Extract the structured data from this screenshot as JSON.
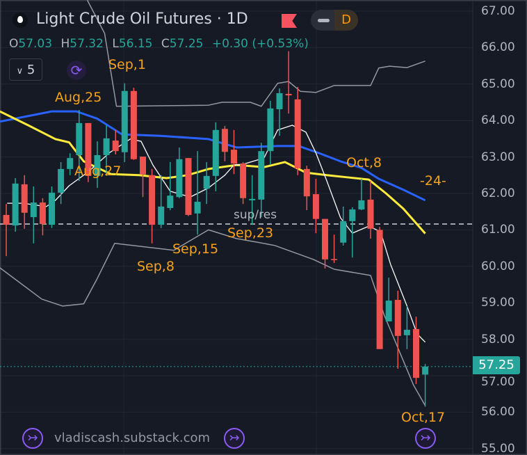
{
  "header": {
    "title": "Light Crude Oil Futures · 1D",
    "badge_letter": "D",
    "ohlc": {
      "o_label": "O",
      "o": "57.03",
      "h_label": "H",
      "h": "57.32",
      "l_label": "L",
      "l": "56.15",
      "c_label": "C",
      "c": "57.25",
      "change": "+0.30 (+0.53%)"
    },
    "level_button": "5",
    "icons": {
      "symbol": "drop-icon",
      "flag": "flag-icon",
      "sync": "sync-icon"
    }
  },
  "watermark": {
    "text": "vladiscash.substack.com",
    "icon": "substack-arrow-icon"
  },
  "annotations": {
    "sep1": "Sep,1",
    "aug25": "Aug,25",
    "aug27": "Aug,27",
    "sep8": "Sep,8",
    "sep15": "Sep,15",
    "sep23": "Sep,23",
    "supres": "sup/res",
    "oct8": "Oct,8",
    "count": "-24-",
    "oct17": "Oct,17"
  },
  "colors": {
    "up": "#26a69a",
    "down": "#ef5350",
    "ma_blue": "#2962ff",
    "ma_yellow": "#ffeb3b",
    "ma_white": "#ffffff",
    "bands": "#9598a1",
    "annotation": "#f7a21b",
    "background": "#161a25"
  },
  "chart_data": {
    "type": "candlestick",
    "timeframe": "1D",
    "ylim": [
      55,
      67
    ],
    "y_ticks": [
      "67.00",
      "66.00",
      "65.00",
      "64.00",
      "63.00",
      "62.00",
      "61.00",
      "60.00",
      "59.00",
      "58.00",
      "57.00",
      "56.00",
      "55.00"
    ],
    "last_price": "57.25",
    "support_resistance": 61.16,
    "candles": [
      [
        61.41,
        61.71,
        60.28,
        61.14
      ],
      [
        61.12,
        62.42,
        60.95,
        62.27
      ],
      [
        62.25,
        62.5,
        61.03,
        61.47
      ],
      [
        61.35,
        62.19,
        60.63,
        61.75
      ],
      [
        61.75,
        61.87,
        60.85,
        61.16
      ],
      [
        61.14,
        62.19,
        61.05,
        62.02
      ],
      [
        62.02,
        62.86,
        61.71,
        62.67
      ],
      [
        62.67,
        63.1,
        62.5,
        62.97
      ],
      [
        63.05,
        64.29,
        62.34,
        63.93
      ],
      [
        63.93,
        63.93,
        62.31,
        62.48
      ],
      [
        62.48,
        63.43,
        62.15,
        63.05
      ],
      [
        63.05,
        63.87,
        62.48,
        63.51
      ],
      [
        63.45,
        63.74,
        63.07,
        63.16
      ],
      [
        63.13,
        65.02,
        62.86,
        64.81
      ],
      [
        64.81,
        64.9,
        62.92,
        62.94
      ],
      [
        63.01,
        63.01,
        61.9,
        62.52
      ],
      [
        62.5,
        62.67,
        60.63,
        61.14
      ],
      [
        61.14,
        62.5,
        61.05,
        61.64
      ],
      [
        61.6,
        62.86,
        61.54,
        61.94
      ],
      [
        61.9,
        63.26,
        61.87,
        62.94
      ],
      [
        62.97,
        62.97,
        61.38,
        61.41
      ],
      [
        61.45,
        63.16,
        60.87,
        61.77
      ],
      [
        62.13,
        62.86,
        61.71,
        62.48
      ],
      [
        62.48,
        63.95,
        62.06,
        63.74
      ],
      [
        63.77,
        63.85,
        62.88,
        63.14
      ],
      [
        63.2,
        63.74,
        62.53,
        62.82
      ],
      [
        62.82,
        62.86,
        61.71,
        61.87
      ],
      [
        61.81,
        62.5,
        61.14,
        61.85
      ],
      [
        61.83,
        63.39,
        61.35,
        63.16
      ],
      [
        63.16,
        64.54,
        62.78,
        64.33
      ],
      [
        64.31,
        64.88,
        63.58,
        64.75
      ],
      [
        64.73,
        65.9,
        64.19,
        64.69
      ],
      [
        64.58,
        64.92,
        62.5,
        62.69
      ],
      [
        62.67,
        62.76,
        61.54,
        61.92
      ],
      [
        61.98,
        62.4,
        60.91,
        61.3
      ],
      [
        61.3,
        61.3,
        59.94,
        60.19
      ],
      [
        60.2,
        60.87,
        60.09,
        60.17
      ],
      [
        60.65,
        61.64,
        60.57,
        61.24
      ],
      [
        61.24,
        61.62,
        60.24,
        61.56
      ],
      [
        61.56,
        62.4,
        61.54,
        61.81
      ],
      [
        61.83,
        62.34,
        60.76,
        61.03
      ],
      [
        61.0,
        61.08,
        57.73,
        57.73
      ],
      [
        58.49,
        59.69,
        58.49,
        59.06
      ],
      [
        59.08,
        59.33,
        57.19,
        58.09
      ],
      [
        58.11,
        58.91,
        57.73,
        58.26
      ],
      [
        58.28,
        58.62,
        56.77,
        56.94
      ],
      [
        57.03,
        57.32,
        56.15,
        57.25
      ]
    ],
    "lines": {
      "ma_blue": [
        [
          -0.7,
          63.97
        ],
        [
          5,
          64.25
        ],
        [
          7.7,
          64.25
        ],
        [
          10,
          64.05
        ],
        [
          12.7,
          63.62
        ],
        [
          16.9,
          63.58
        ],
        [
          22.2,
          63.49
        ],
        [
          25.3,
          63.26
        ],
        [
          29.8,
          63.3
        ],
        [
          32.1,
          63.3
        ],
        [
          34.4,
          63.1
        ],
        [
          36.7,
          62.88
        ],
        [
          39,
          62.7
        ],
        [
          40.9,
          62.4
        ],
        [
          43.6,
          62.1
        ],
        [
          46,
          61.81
        ]
      ],
      "ma_yellow": [
        [
          -0.7,
          64.25
        ],
        [
          2.4,
          63.87
        ],
        [
          5.4,
          63.49
        ],
        [
          6.9,
          63.4
        ],
        [
          8.5,
          62.88
        ],
        [
          11.5,
          62.53
        ],
        [
          14.6,
          62.5
        ],
        [
          17.6,
          62.42
        ],
        [
          19.9,
          62.5
        ],
        [
          22.2,
          62.67
        ],
        [
          25.3,
          62.78
        ],
        [
          28.3,
          62.72
        ],
        [
          30.6,
          62.86
        ],
        [
          32.9,
          62.57
        ],
        [
          35.2,
          62.5
        ],
        [
          37.5,
          62.44
        ],
        [
          39.8,
          62.38
        ],
        [
          41.7,
          62.0
        ],
        [
          43.6,
          61.58
        ],
        [
          46,
          60.9
        ]
      ],
      "ma_white": [
        [
          0.1,
          61.73
        ],
        [
          1.8,
          61.73
        ],
        [
          4.4,
          61.64
        ],
        [
          5.4,
          61.81
        ],
        [
          6.9,
          62.21
        ],
        [
          9,
          62.59
        ],
        [
          11.3,
          63.11
        ],
        [
          13.6,
          63.49
        ],
        [
          14.8,
          63.43
        ],
        [
          16.1,
          62.78
        ],
        [
          18,
          62.06
        ],
        [
          20.2,
          61.9
        ],
        [
          22.2,
          62.15
        ],
        [
          24,
          62.5
        ],
        [
          25,
          62.78
        ],
        [
          26,
          62.8
        ],
        [
          28.3,
          62.97
        ],
        [
          29.8,
          63.74
        ],
        [
          31.4,
          63.87
        ],
        [
          32.9,
          63.68
        ],
        [
          34,
          63.11
        ],
        [
          35.2,
          62.34
        ],
        [
          36.7,
          61.33
        ],
        [
          38,
          60.91
        ],
        [
          39.8,
          61.1
        ],
        [
          41.1,
          60.95
        ],
        [
          42.2,
          60.05
        ],
        [
          44,
          58.91
        ],
        [
          45.1,
          58.15
        ],
        [
          46,
          57.92
        ]
      ],
      "band_upper": [
        [
          8.9,
          67.3
        ],
        [
          10.8,
          66.39
        ],
        [
          12.1,
          64.39
        ],
        [
          22.2,
          64.42
        ],
        [
          23.7,
          64.5
        ],
        [
          26.8,
          64.5
        ],
        [
          28,
          64.39
        ],
        [
          29.8,
          65.02
        ],
        [
          31,
          65.07
        ],
        [
          32.3,
          64.8
        ],
        [
          34,
          64.77
        ],
        [
          36,
          64.96
        ],
        [
          40,
          64.96
        ],
        [
          40.9,
          65.44
        ],
        [
          42.1,
          65.49
        ],
        [
          44,
          65.45
        ],
        [
          46,
          65.63
        ]
      ],
      "band_lower": [
        [
          -0.7,
          59.96
        ],
        [
          3.9,
          59.1
        ],
        [
          6.2,
          58.91
        ],
        [
          8.5,
          58.97
        ],
        [
          10,
          59.67
        ],
        [
          11.9,
          60.63
        ],
        [
          18.4,
          60.44
        ],
        [
          22.2,
          61.0
        ],
        [
          25.3,
          60.76
        ],
        [
          27.6,
          60.66
        ],
        [
          29.5,
          60.57
        ],
        [
          33.7,
          60.19
        ],
        [
          36,
          59.92
        ],
        [
          40,
          59.75
        ],
        [
          41.5,
          58.66
        ],
        [
          44.7,
          56.75
        ],
        [
          46,
          56.18
        ]
      ]
    }
  }
}
